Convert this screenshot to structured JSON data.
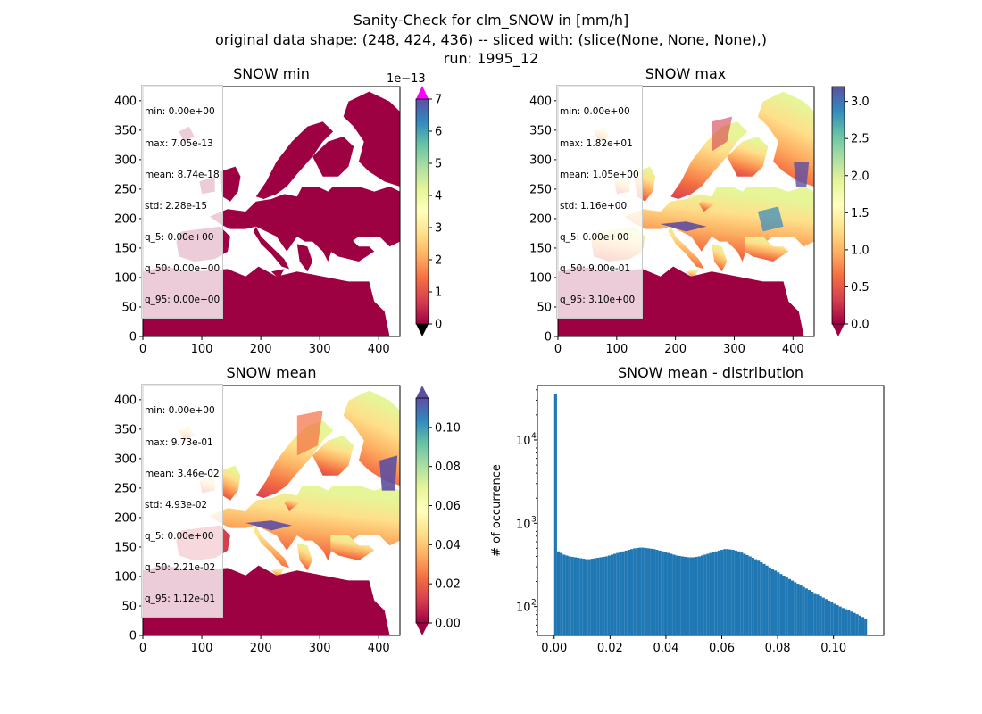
{
  "suptitle": {
    "line1": "Sanity-Check for clm_SNOW in [mm/h]",
    "line2": "original data shape: (248, 424, 436) -- sliced with: (slice(None, None, None),)",
    "line3": "run: 1995_12"
  },
  "colors": {
    "hist_bar": "#1f77b4",
    "land_low": "#9e0142",
    "over_color": "#ff00ff",
    "under_color": "#000000"
  },
  "chart_data": [
    {
      "type": "heatmap",
      "title": "SNOW min",
      "map": "Europe",
      "xlim": [
        0,
        436
      ],
      "ylim": [
        0,
        424
      ],
      "xticks": [
        "0",
        "100",
        "200",
        "300",
        "400"
      ],
      "yticks": [
        "0",
        "50",
        "100",
        "150",
        "200",
        "250",
        "300",
        "350",
        "400"
      ],
      "colorbar": {
        "min": 0,
        "max": 7,
        "ticks": [
          "0",
          "1",
          "2",
          "3",
          "4",
          "5",
          "6",
          "7"
        ],
        "offset_label": "1e−13",
        "extend": "both"
      },
      "stats": [
        "min: 0.00e+00",
        "max: 7.05e-13",
        "mean: 8.74e-18",
        "std: 2.28e-15",
        "q_5: 0.00e+00",
        "q_50: 0.00e+00",
        "q_95: 0.00e+00"
      ]
    },
    {
      "type": "heatmap",
      "title": "SNOW max",
      "map": "Europe",
      "xlim": [
        0,
        436
      ],
      "ylim": [
        0,
        424
      ],
      "xticks": [
        "0",
        "100",
        "200",
        "300",
        "400"
      ],
      "yticks": [
        "0",
        "50",
        "100",
        "150",
        "200",
        "250",
        "300",
        "350",
        "400"
      ],
      "colorbar": {
        "min": 0,
        "max": 3.2,
        "ticks": [
          "0.0",
          "0.5",
          "1.0",
          "1.5",
          "2.0",
          "2.5",
          "3.0"
        ],
        "extend": "min"
      },
      "stats": [
        "min: 0.00e+00",
        "max: 1.82e+01",
        "mean: 1.05e+00",
        "std: 1.16e+00",
        "q_5: 0.00e+00",
        "q_50: 9.00e-01",
        "q_95: 3.10e+00"
      ]
    },
    {
      "type": "heatmap",
      "title": "SNOW mean",
      "map": "Europe",
      "xlim": [
        0,
        436
      ],
      "ylim": [
        0,
        424
      ],
      "xticks": [
        "0",
        "100",
        "200",
        "300",
        "400"
      ],
      "yticks": [
        "0",
        "50",
        "100",
        "150",
        "200",
        "250",
        "300",
        "350",
        "400"
      ],
      "colorbar": {
        "min": 0,
        "max": 0.115,
        "ticks": [
          "0.00",
          "0.02",
          "0.04",
          "0.06",
          "0.08",
          "0.10"
        ],
        "extend": "both"
      },
      "stats": [
        "min: 0.00e+00",
        "max: 9.73e-01",
        "mean: 3.46e-02",
        "std: 4.93e-02",
        "q_5: 0.00e+00",
        "q_50: 2.21e-02",
        "q_95: 1.12e-01"
      ]
    },
    {
      "type": "bar",
      "subtype": "histogram",
      "title": "SNOW mean - distribution",
      "xlabel": "",
      "ylabel": "# of occurrence",
      "yscale": "log",
      "xlim": [
        -0.006,
        0.118
      ],
      "ylim": [
        45,
        45000
      ],
      "xticks": [
        "0.00",
        "0.02",
        "0.04",
        "0.06",
        "0.08",
        "0.10"
      ],
      "yticks": [
        "10^2",
        "10^3",
        "10^4"
      ],
      "bin_range": [
        0.0,
        0.112
      ],
      "values": [
        36000,
        460,
        440,
        420,
        410,
        400,
        395,
        390,
        385,
        380,
        375,
        370,
        370,
        375,
        380,
        385,
        390,
        395,
        400,
        410,
        420,
        430,
        440,
        450,
        460,
        470,
        480,
        490,
        500,
        505,
        510,
        510,
        505,
        500,
        495,
        490,
        480,
        470,
        460,
        450,
        440,
        430,
        420,
        410,
        405,
        400,
        395,
        390,
        390,
        390,
        395,
        400,
        410,
        420,
        430,
        440,
        450,
        460,
        470,
        480,
        490,
        490,
        485,
        480,
        470,
        460,
        445,
        430,
        415,
        400,
        385,
        370,
        355,
        340,
        325,
        310,
        295,
        282,
        270,
        258,
        246,
        235,
        224,
        214,
        205,
        196,
        188,
        180,
        172,
        165,
        158,
        151,
        145,
        139,
        133,
        128,
        123,
        118,
        113,
        108,
        104,
        100,
        96,
        93,
        90,
        87,
        84,
        81,
        78,
        75,
        72
      ]
    }
  ]
}
